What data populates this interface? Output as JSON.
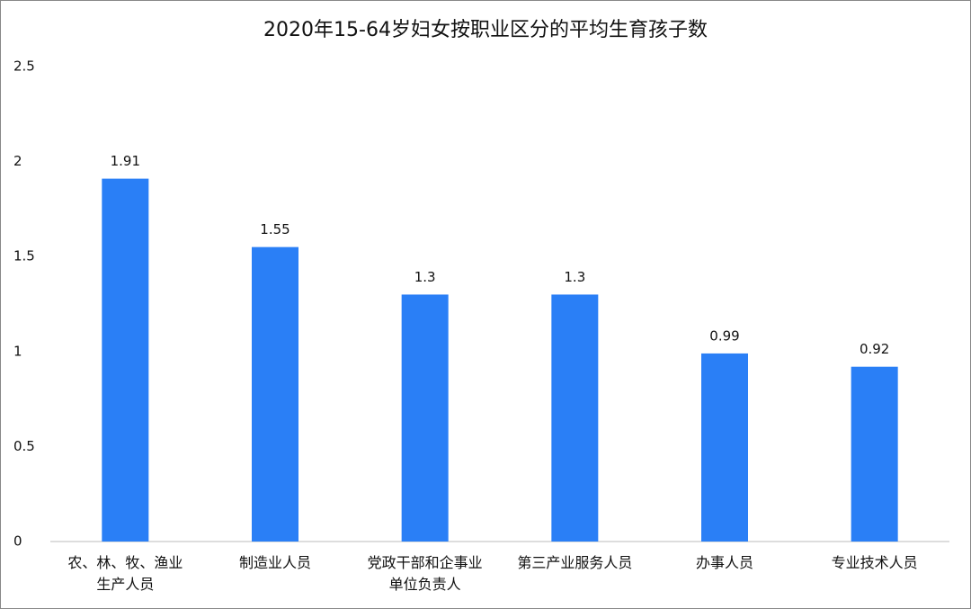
{
  "chart_data": {
    "type": "bar",
    "title": "2020年15-64岁妇女按职业区分的平均生育孩子数",
    "categories": [
      "农、林、牧、渔业生产人员",
      "制造业人员",
      "党政干部和企事业单位负责人",
      "第三产业服务人员",
      "办事人员",
      "专业技术人员"
    ],
    "values": [
      1.91,
      1.55,
      1.3,
      1.3,
      0.99,
      0.92
    ],
    "color": "#2a7ff6",
    "ylim": [
      0,
      2.5
    ],
    "yticks": [
      0,
      0.5,
      1,
      1.5,
      2,
      2.5
    ],
    "grid": false
  }
}
